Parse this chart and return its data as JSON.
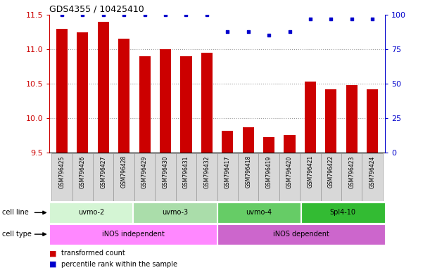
{
  "title": "GDS4355 / 10425410",
  "samples": [
    "GSM796425",
    "GSM796426",
    "GSM796427",
    "GSM796428",
    "GSM796429",
    "GSM796430",
    "GSM796431",
    "GSM796432",
    "GSM796417",
    "GSM796418",
    "GSM796419",
    "GSM796420",
    "GSM796421",
    "GSM796422",
    "GSM796423",
    "GSM796424"
  ],
  "bar_values": [
    11.3,
    11.25,
    11.4,
    11.15,
    10.9,
    11.0,
    10.9,
    10.95,
    9.82,
    9.87,
    9.72,
    9.75,
    10.53,
    10.42,
    10.48,
    10.42
  ],
  "dot_values": [
    100,
    100,
    100,
    100,
    100,
    100,
    100,
    100,
    88,
    88,
    85,
    88,
    97,
    97,
    97,
    97
  ],
  "ylim_left": [
    9.5,
    11.5
  ],
  "ylim_right": [
    0,
    100
  ],
  "yticks_left": [
    9.5,
    10.0,
    10.5,
    11.0,
    11.5
  ],
  "yticks_right": [
    0,
    25,
    50,
    75,
    100
  ],
  "cell_lines": [
    {
      "label": "uvmo-2",
      "start": 0,
      "end": 4,
      "color": "#d4f5d4"
    },
    {
      "label": "uvmo-3",
      "start": 4,
      "end": 8,
      "color": "#aaddaa"
    },
    {
      "label": "uvmo-4",
      "start": 8,
      "end": 12,
      "color": "#66cc66"
    },
    {
      "label": "Spl4-10",
      "start": 12,
      "end": 16,
      "color": "#33bb33"
    }
  ],
  "cell_types": [
    {
      "label": "iNOS independent",
      "start": 0,
      "end": 8,
      "color": "#ff88ff"
    },
    {
      "label": "iNOS dependent",
      "start": 8,
      "end": 16,
      "color": "#cc66cc"
    }
  ],
  "bar_color": "#cc0000",
  "dot_color": "#0000cc",
  "bar_width": 0.55,
  "grid_color": "#999999",
  "left_axis_color": "#cc0000",
  "right_axis_color": "#0000cc"
}
